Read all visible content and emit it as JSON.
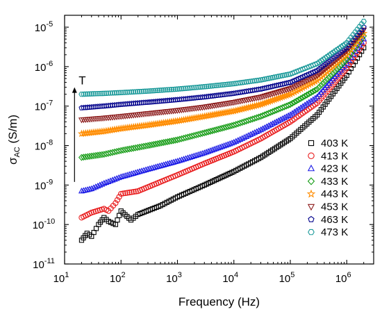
{
  "chart_data": {
    "type": "scatter",
    "xlabel": "Frequency (Hz)",
    "ylabel": {
      "base": "σ",
      "sub": "AC",
      "unit": " (S/m)"
    },
    "x_scale": "log",
    "y_scale": "log",
    "xlim": [
      10,
      3000000
    ],
    "ylim": [
      1e-11,
      2e-05
    ],
    "x_ticks": [
      {
        "value": 10,
        "base": "10",
        "exp": "1"
      },
      {
        "value": 100,
        "base": "10",
        "exp": "2"
      },
      {
        "value": 1000,
        "base": "10",
        "exp": "3"
      },
      {
        "value": 10000,
        "base": "10",
        "exp": "4"
      },
      {
        "value": 100000,
        "base": "10",
        "exp": "5"
      },
      {
        "value": 1000000,
        "base": "10",
        "exp": "6"
      }
    ],
    "y_ticks": [
      {
        "value": 1e-11,
        "base": "10",
        "exp": "-11"
      },
      {
        "value": 1e-10,
        "base": "10",
        "exp": "-10"
      },
      {
        "value": 1e-09,
        "base": "10",
        "exp": "-9"
      },
      {
        "value": 1e-08,
        "base": "10",
        "exp": "-8"
      },
      {
        "value": 1e-07,
        "base": "10",
        "exp": "-7"
      },
      {
        "value": 1e-06,
        "base": "10",
        "exp": "-6"
      },
      {
        "value": 1e-05,
        "base": "10",
        "exp": "-5"
      }
    ],
    "grid": false,
    "legend_position": "bottom-right",
    "annotation": {
      "text": "T",
      "arrow_from": [
        15,
        1.2e-09
      ],
      "arrow_to": [
        15,
        3e-07
      ]
    },
    "series": [
      {
        "name": "403 K",
        "marker": "square",
        "color": "#000000",
        "points": [
          [
            20,
            4e-11
          ],
          [
            25,
            6e-11
          ],
          [
            30,
            5e-11
          ],
          [
            40,
            1e-10
          ],
          [
            50,
            1.5e-10
          ],
          [
            60,
            1.2e-10
          ],
          [
            80,
            1e-10
          ],
          [
            100,
            2.2e-10
          ],
          [
            150,
            1.3e-10
          ],
          [
            200,
            1.8e-10
          ],
          [
            500,
            3e-10
          ],
          [
            1000,
            5e-10
          ],
          [
            3000,
            1e-09
          ],
          [
            10000,
            2.2e-09
          ],
          [
            30000,
            5e-09
          ],
          [
            100000,
            1.5e-08
          ],
          [
            300000,
            6e-08
          ],
          [
            1000000,
            6e-07
          ],
          [
            2000000,
            3e-06
          ]
        ]
      },
      {
        "name": "413 K",
        "marker": "circle",
        "color": "#e8191a",
        "points": [
          [
            20,
            1.5e-10
          ],
          [
            30,
            2e-10
          ],
          [
            50,
            2.5e-10
          ],
          [
            60,
            2.2e-10
          ],
          [
            80,
            3.5e-10
          ],
          [
            100,
            6e-10
          ],
          [
            200,
            7e-10
          ],
          [
            500,
            1.2e-09
          ],
          [
            1000,
            1.8e-09
          ],
          [
            3000,
            3.5e-09
          ],
          [
            10000,
            7e-09
          ],
          [
            30000,
            1.5e-08
          ],
          [
            100000,
            4e-08
          ],
          [
            300000,
            1.2e-07
          ],
          [
            1000000,
            9e-07
          ],
          [
            2000000,
            4e-06
          ]
        ]
      },
      {
        "name": "423 K",
        "marker": "triangle",
        "color": "#1a1ae6",
        "points": [
          [
            20,
            7e-10
          ],
          [
            30,
            8e-10
          ],
          [
            50,
            1.1e-09
          ],
          [
            100,
            1.6e-09
          ],
          [
            300,
            2.5e-09
          ],
          [
            1000,
            4e-09
          ],
          [
            3000,
            6.5e-09
          ],
          [
            10000,
            1.2e-08
          ],
          [
            30000,
            2.5e-08
          ],
          [
            100000,
            6e-08
          ],
          [
            300000,
            1.7e-07
          ],
          [
            1000000,
            1.2e-06
          ],
          [
            2000000,
            5e-06
          ]
        ]
      },
      {
        "name": "433 K",
        "marker": "diamond",
        "color": "#139b13",
        "points": [
          [
            20,
            5e-09
          ],
          [
            50,
            6e-09
          ],
          [
            100,
            7.5e-09
          ],
          [
            300,
            1e-08
          ],
          [
            1000,
            1.4e-08
          ],
          [
            3000,
            2.1e-08
          ],
          [
            10000,
            3.3e-08
          ],
          [
            30000,
            5.5e-08
          ],
          [
            100000,
            1.1e-07
          ],
          [
            300000,
            2.7e-07
          ],
          [
            1000000,
            1.5e-06
          ],
          [
            2000000,
            6e-06
          ]
        ]
      },
      {
        "name": "443 K",
        "marker": "star",
        "color": "#ff8c00",
        "points": [
          [
            20,
            2e-08
          ],
          [
            50,
            2.3e-08
          ],
          [
            100,
            2.7e-08
          ],
          [
            300,
            3.3e-08
          ],
          [
            1000,
            4.2e-08
          ],
          [
            3000,
            5.5e-08
          ],
          [
            10000,
            7.5e-08
          ],
          [
            30000,
            1.1e-07
          ],
          [
            100000,
            2e-07
          ],
          [
            300000,
            4.5e-07
          ],
          [
            1000000,
            2e-06
          ],
          [
            2000000,
            7e-06
          ]
        ]
      },
      {
        "name": "453 K",
        "marker": "triangle-down",
        "color": "#8b1a1a",
        "points": [
          [
            20,
            4.5e-08
          ],
          [
            50,
            5e-08
          ],
          [
            100,
            5.5e-08
          ],
          [
            300,
            6.5e-08
          ],
          [
            1000,
            7.8e-08
          ],
          [
            3000,
            9.5e-08
          ],
          [
            10000,
            1.25e-07
          ],
          [
            30000,
            1.7e-07
          ],
          [
            100000,
            2.8e-07
          ],
          [
            300000,
            6e-07
          ],
          [
            1000000,
            2.5e-06
          ],
          [
            2000000,
            8.5e-06
          ]
        ]
      },
      {
        "name": "463 K",
        "marker": "pentagon",
        "color": "#00008b",
        "points": [
          [
            20,
            9e-08
          ],
          [
            50,
            1e-07
          ],
          [
            100,
            1.1e-07
          ],
          [
            300,
            1.25e-07
          ],
          [
            1000,
            1.45e-07
          ],
          [
            3000,
            1.7e-07
          ],
          [
            10000,
            2.1e-07
          ],
          [
            30000,
            2.7e-07
          ],
          [
            100000,
            4e-07
          ],
          [
            300000,
            8e-07
          ],
          [
            1000000,
            3e-06
          ],
          [
            2000000,
            1e-05
          ]
        ]
      },
      {
        "name": "473 K",
        "marker": "hexagon",
        "color": "#1a9999",
        "points": [
          [
            20,
            2e-07
          ],
          [
            50,
            2.1e-07
          ],
          [
            100,
            2.2e-07
          ],
          [
            300,
            2.4e-07
          ],
          [
            1000,
            2.7e-07
          ],
          [
            3000,
            3.1e-07
          ],
          [
            10000,
            3.7e-07
          ],
          [
            30000,
            4.6e-07
          ],
          [
            100000,
            6.5e-07
          ],
          [
            300000,
            1.2e-06
          ],
          [
            1000000,
            4e-06
          ],
          [
            2000000,
            1.4e-05
          ]
        ]
      }
    ]
  }
}
